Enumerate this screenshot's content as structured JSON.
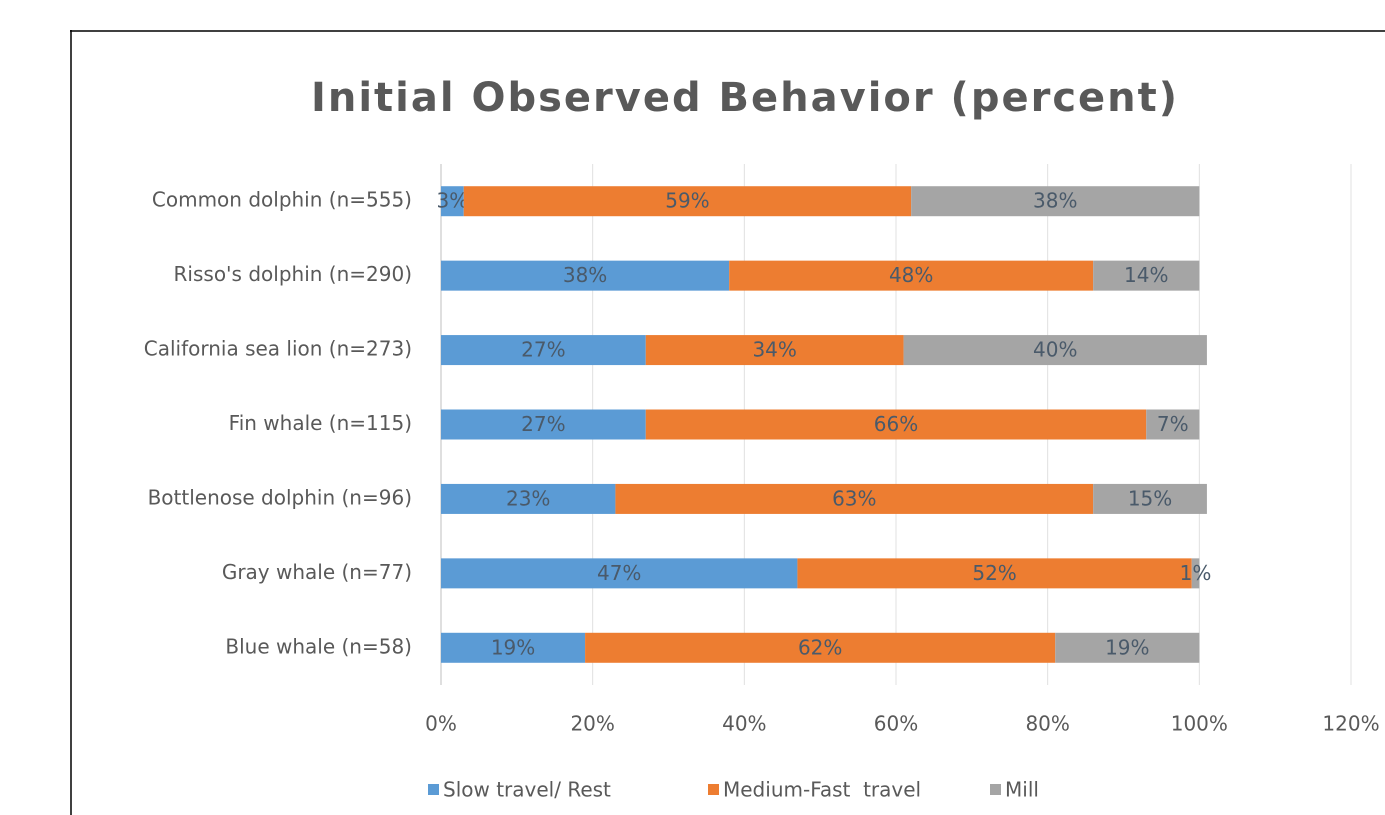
{
  "chart_data": {
    "type": "stacked-barh",
    "title": "Initial Observed Behavior (percent)",
    "categories": [
      "Common dolphin (n=555)",
      "Risso's dolphin (n=290)",
      "California sea lion (n=273)",
      "Fin whale (n=115)",
      "Bottlenose dolphin (n=96)",
      "Gray whale (n=77)",
      "Blue whale (n=58)"
    ],
    "series": [
      {
        "name": "Slow travel/ Rest",
        "color": "#5b9bd5",
        "values": [
          3,
          38,
          27,
          27,
          23,
          47,
          19
        ],
        "value_labels": [
          "3%",
          "38%",
          "27%",
          "27%",
          "23%",
          "47%",
          "19%"
        ]
      },
      {
        "name": "Medium-Fast  travel",
        "color": "#ed7d31",
        "values": [
          59,
          48,
          34,
          66,
          63,
          52,
          62
        ],
        "value_labels": [
          "59%",
          "48%",
          "34%",
          "66%",
          "63%",
          "52%",
          "62%"
        ]
      },
      {
        "name": "Mill",
        "color": "#a5a5a5",
        "values": [
          38,
          14,
          40,
          7,
          15,
          1,
          19
        ],
        "value_labels": [
          "38%",
          "14%",
          "40%",
          "7%",
          "15%",
          "1%",
          "19%"
        ]
      }
    ],
    "xlim": [
      0,
      120
    ],
    "xticks": [
      {
        "value": 0,
        "label": "0%"
      },
      {
        "value": 20,
        "label": "20%"
      },
      {
        "value": 40,
        "label": "40%"
      },
      {
        "value": 60,
        "label": "60%"
      },
      {
        "value": 80,
        "label": "80%"
      },
      {
        "value": 100,
        "label": "100%"
      },
      {
        "value": 120,
        "label": "120%"
      }
    ],
    "grid": true,
    "legend": "bottom"
  }
}
